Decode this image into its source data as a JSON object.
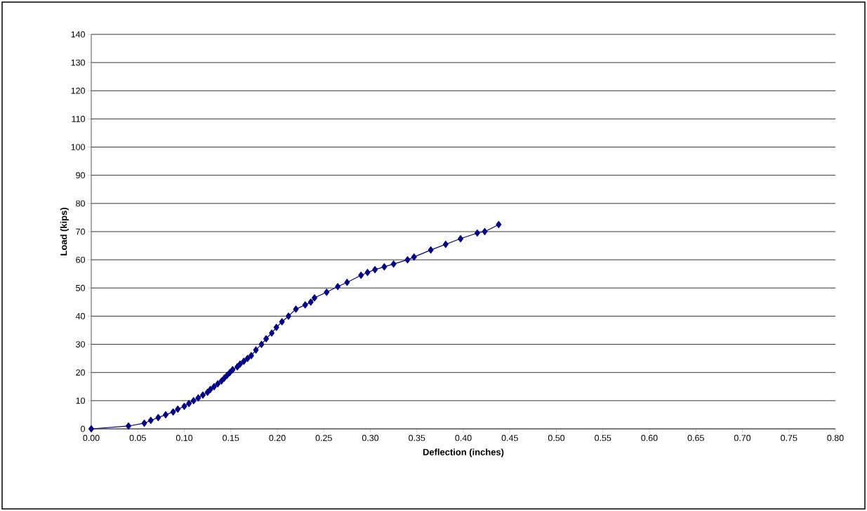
{
  "chart_data": {
    "type": "line",
    "xlabel": "Deflection (inches)",
    "ylabel": "Load (kips)",
    "x": [
      0,
      0.04,
      0.057,
      0.064,
      0.072,
      0.08,
      0.088,
      0.093,
      0.1,
      0.105,
      0.11,
      0.115,
      0.12,
      0.125,
      0.128,
      0.132,
      0.136,
      0.14,
      0.143,
      0.146,
      0.149,
      0.152,
      0.157,
      0.16,
      0.164,
      0.168,
      0.172,
      0.177,
      0.183,
      0.188,
      0.194,
      0.199,
      0.205,
      0.212,
      0.22,
      0.23,
      0.236,
      0.24,
      0.253,
      0.265,
      0.275,
      0.29,
      0.297,
      0.305,
      0.315,
      0.325,
      0.34,
      0.347,
      0.365,
      0.381,
      0.397,
      0.415,
      0.423,
      0.438
    ],
    "series": [
      {
        "color": "#000080",
        "values": [
          0,
          1,
          2,
          3,
          4,
          5,
          6,
          7,
          8,
          9,
          10,
          11,
          12,
          13,
          14,
          15,
          16,
          17,
          18,
          19,
          20,
          21,
          22,
          23,
          24,
          25,
          26,
          28,
          30,
          32,
          34,
          36,
          38,
          40,
          42.5,
          44,
          45,
          46.5,
          48.5,
          50.5,
          52,
          54.5,
          55.5,
          56.5,
          57.5,
          58.5,
          60,
          61,
          63.5,
          65.5,
          67.5,
          69.5,
          70,
          72.5
        ]
      }
    ],
    "xlim": [
      0,
      0.8
    ],
    "ylim": [
      0,
      140
    ],
    "xticks": [
      {
        "value": 0,
        "label": "0.00"
      },
      {
        "value": 0.05,
        "label": "0.05"
      },
      {
        "value": 0.1,
        "label": "0.10"
      },
      {
        "value": 0.15,
        "label": "0.15"
      },
      {
        "value": 0.2,
        "label": "0.20"
      },
      {
        "value": 0.25,
        "label": "0.25"
      },
      {
        "value": 0.3,
        "label": "0.30"
      },
      {
        "value": 0.35,
        "label": "0.35"
      },
      {
        "value": 0.4,
        "label": "0.40"
      },
      {
        "value": 0.45,
        "label": "0.45"
      },
      {
        "value": 0.5,
        "label": "0.50"
      },
      {
        "value": 0.55,
        "label": "0.55"
      },
      {
        "value": 0.6,
        "label": "0.60"
      },
      {
        "value": 0.65,
        "label": "0.65"
      },
      {
        "value": 0.7,
        "label": "0.70"
      },
      {
        "value": 0.75,
        "label": "0.75"
      },
      {
        "value": 0.8,
        "label": "0.80"
      }
    ],
    "yticks": [
      0,
      10,
      20,
      30,
      40,
      50,
      60,
      70,
      80,
      90,
      100,
      110,
      120,
      130,
      140
    ],
    "grid": "y",
    "marker": "diamond",
    "line_style": "solid"
  }
}
